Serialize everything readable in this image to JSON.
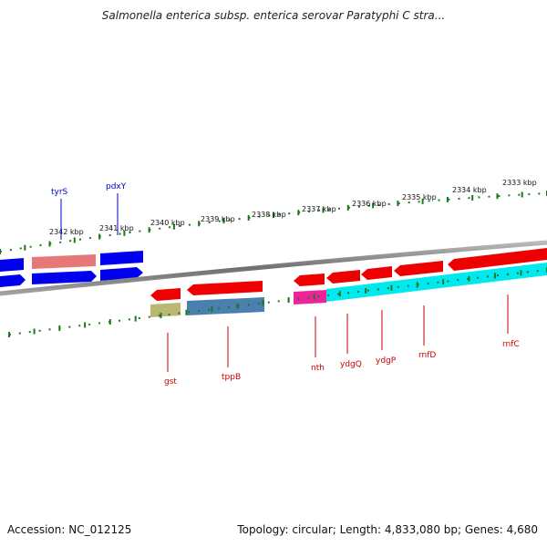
{
  "title": "Salmonella enterica subsp. enterica serovar Paratyphi C stra...",
  "footer": {
    "accession": "Accession: NC_012125",
    "info": "Topology: circular; Length: 4,833,080 bp; Genes: 4,680"
  },
  "ruler_labels": [
    "2342 kbp",
    "2341 kbp",
    "2340 kbp",
    "2339 kbp",
    "2338 kbp",
    "2337 kbp",
    "2336 kbp",
    "2335 kbp",
    "2334 kbp",
    "2333 kbp"
  ],
  "genes_top": [
    {
      "name": "tyrS",
      "color": "#0000cc"
    },
    {
      "name": "pdxY",
      "color": "#0000cc"
    }
  ],
  "genes_bottom": [
    {
      "name": "gst",
      "color": "#cc0000"
    },
    {
      "name": "tppB",
      "color": "#cc0000"
    },
    {
      "name": "nth",
      "color": "#cc0000"
    },
    {
      "name": "ydgQ",
      "color": "#cc0000"
    },
    {
      "name": "ydgP",
      "color": "#cc0000"
    },
    {
      "name": "rnfD",
      "color": "#cc0000"
    },
    {
      "name": "rnfC",
      "color": "#cc0000"
    }
  ],
  "colors": {
    "backbone": "#8a8a8a",
    "ticks": "#1a7a1a",
    "forward_cds": "#0000ee",
    "forward_rna": "#e87878",
    "reverse_cds": "#ee0000",
    "gst_feature": "#b8b870",
    "tppB_feature": "#4a7fb0",
    "nth_feature": "#ee2299",
    "rnf_feature": "#00e8f0"
  }
}
